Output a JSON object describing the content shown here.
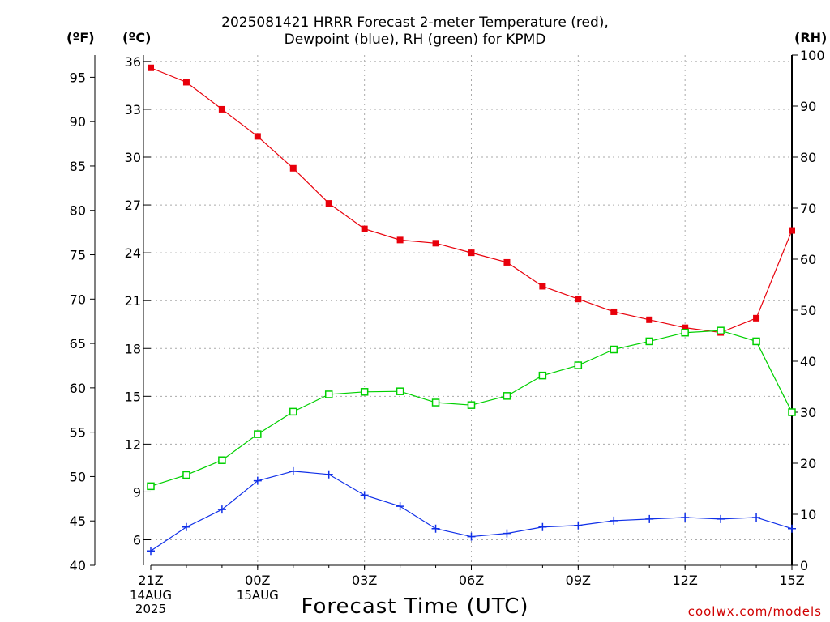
{
  "header": {
    "title_line1": "2025081421 HRRR Forecast 2-meter Temperature (red),",
    "title_line2": "Dewpoint (blue), RH (green) for KPMD"
  },
  "units": {
    "fahrenheit": "(ºF)",
    "celsius": "(ºC)",
    "rh": "(RH)"
  },
  "footer": {
    "x_title": "Forecast Time (UTC)",
    "credit": "coolwx.com/models"
  },
  "x_date_labels": [
    {
      "hour_offset": 0,
      "lines": [
        "14AUG",
        "2025"
      ]
    },
    {
      "hour_offset": 3,
      "lines": [
        "15AUG"
      ]
    }
  ],
  "chart_data": {
    "type": "line",
    "x": [
      0,
      1,
      2,
      3,
      4,
      5,
      6,
      7,
      8,
      9,
      10,
      11,
      12,
      13,
      14,
      15,
      16,
      17,
      18
    ],
    "x_range": [
      0,
      18
    ],
    "x_ticks": [
      {
        "x": 0,
        "label": "21Z"
      },
      {
        "x": 3,
        "label": "00Z"
      },
      {
        "x": 6,
        "label": "03Z"
      },
      {
        "x": 9,
        "label": "06Z"
      },
      {
        "x": 12,
        "label": "09Z"
      },
      {
        "x": 15,
        "label": "12Z"
      },
      {
        "x": 18,
        "label": "15Z"
      }
    ],
    "y_left_celsius": {
      "range": [
        4.4,
        36.4
      ],
      "ticks": [
        6,
        9,
        12,
        15,
        18,
        21,
        24,
        27,
        30,
        33,
        36
      ]
    },
    "y_left_fahrenheit": {
      "range": [
        40,
        97.5
      ],
      "ticks": [
        40,
        45,
        50,
        55,
        60,
        65,
        70,
        75,
        80,
        85,
        90,
        95
      ]
    },
    "y_right_rh": {
      "range": [
        0,
        100
      ],
      "ticks": [
        0,
        10,
        20,
        30,
        40,
        50,
        60,
        70,
        80,
        90,
        100
      ]
    },
    "grid": true,
    "series": [
      {
        "name": "Temperature",
        "unit": "C",
        "axis": "celsius",
        "color": "#e8000b",
        "marker": "filled-square",
        "values": [
          35.6,
          34.7,
          33.0,
          31.3,
          29.3,
          27.1,
          25.5,
          24.8,
          24.6,
          24.0,
          23.4,
          21.9,
          21.1,
          20.3,
          19.8,
          19.3,
          19.0,
          19.9,
          25.4
        ]
      },
      {
        "name": "Dewpoint",
        "unit": "C",
        "axis": "celsius",
        "color": "#1030e8",
        "marker": "plus",
        "values": [
          5.3,
          6.8,
          7.9,
          9.7,
          10.3,
          10.1,
          8.8,
          8.1,
          6.7,
          6.2,
          6.4,
          6.8,
          6.9,
          7.2,
          7.3,
          7.4,
          7.3,
          7.4,
          6.7
        ]
      },
      {
        "name": "RH",
        "unit": "%",
        "axis": "rh",
        "color": "#00d000",
        "marker": "open-square",
        "values": [
          15.5,
          17.7,
          20.6,
          25.7,
          30.1,
          33.5,
          34.0,
          34.1,
          31.9,
          31.4,
          33.2,
          37.2,
          39.2,
          42.3,
          43.9,
          45.6,
          46.0,
          43.9,
          30.0
        ]
      }
    ]
  }
}
